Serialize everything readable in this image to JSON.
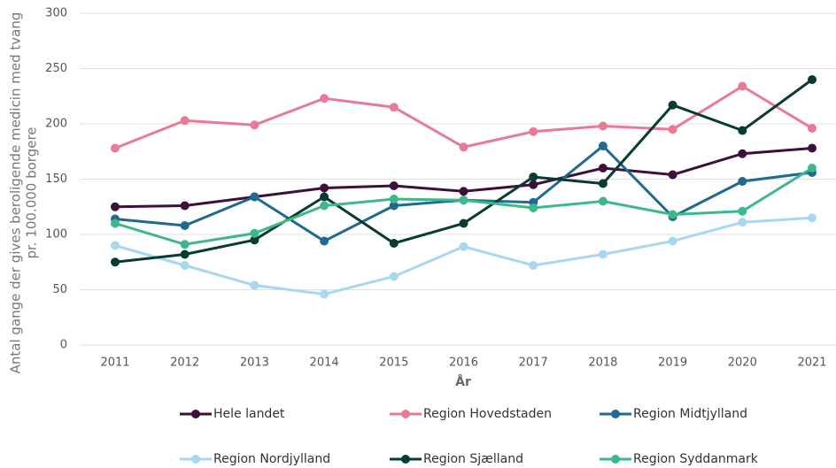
{
  "chart_data": {
    "type": "line",
    "y_label": [
      "Antal gange der gives beroligende medicin med tvang",
      "pr. 100.000 borgere"
    ],
    "x_label": "År",
    "categories": [
      "2011",
      "2012",
      "2013",
      "2014",
      "2015",
      "2016",
      "2017",
      "2018",
      "2019",
      "2020",
      "2021"
    ],
    "series": [
      {
        "name": "Hele landet",
        "color": "#3d0f3a",
        "values": [
          125,
          126,
          134,
          142,
          144,
          139,
          145,
          160,
          154,
          173,
          178
        ]
      },
      {
        "name": "Region Hovedstaden",
        "color": "#e87a96",
        "values": [
          178,
          203,
          199,
          223,
          215,
          179,
          193,
          198,
          195,
          234,
          196
        ]
      },
      {
        "name": "Region Midtjylland",
        "color": "#1e6a91",
        "values": [
          114,
          108,
          134,
          94,
          126,
          131,
          129,
          180,
          116,
          148,
          156
        ]
      },
      {
        "name": "Region Nordjylland",
        "color": "#a8d8f0",
        "values": [
          90,
          72,
          54,
          46,
          62,
          89,
          72,
          82,
          94,
          111,
          115
        ]
      },
      {
        "name": "Region Sjælland",
        "color": "#073b33",
        "values": [
          75,
          82,
          95,
          134,
          92,
          110,
          152,
          146,
          217,
          194,
          240
        ]
      },
      {
        "name": "Region Syddanmark",
        "color": "#3cb88c",
        "values": [
          110,
          91,
          101,
          126,
          132,
          131,
          124,
          130,
          118,
          121,
          160
        ]
      }
    ],
    "ylim": [
      0,
      300
    ],
    "yticks": [
      0,
      50,
      100,
      150,
      200,
      250,
      300
    ],
    "grid": true
  }
}
